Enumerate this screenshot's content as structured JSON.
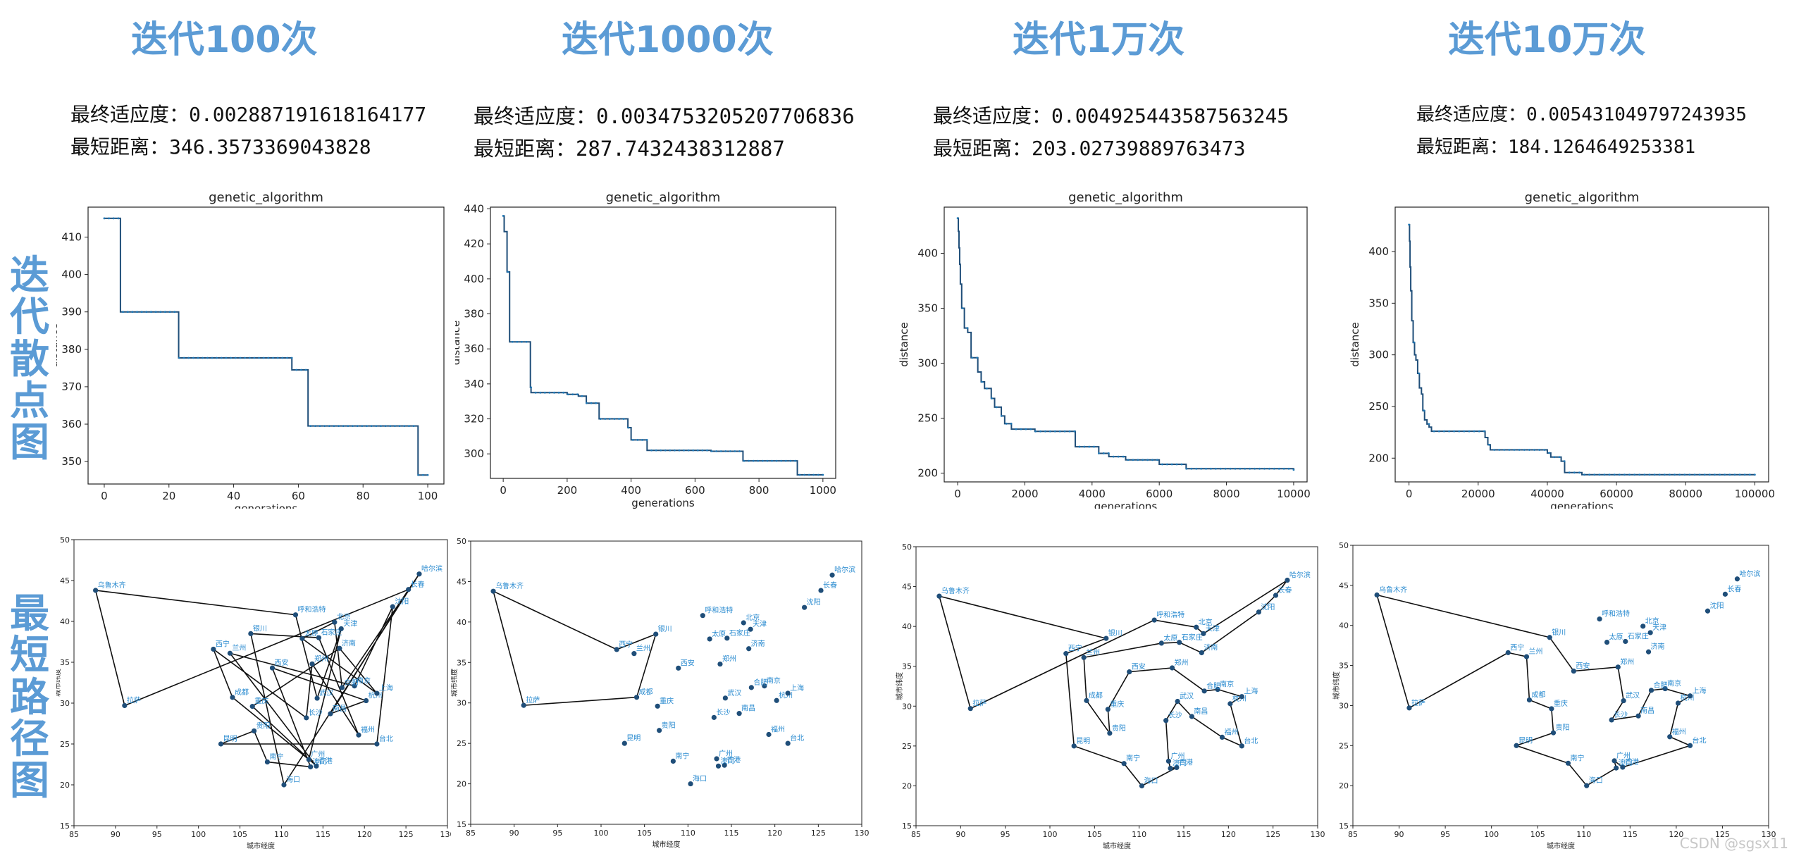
{
  "columns": [
    {
      "title": "迭代100次",
      "fitness_label": "最终适应度：",
      "fitness": "0.002887191618164177",
      "distance_label": "最短距离：",
      "distance": "346.3573369043828"
    },
    {
      "title": "迭代1000次",
      "fitness_label": "最终适应度：",
      "fitness": "0.0034753205207706836",
      "distance_label": "最短距离：",
      "distance": "287.7432438312887"
    },
    {
      "title": "迭代1万次",
      "fitness_label": "最终适应度：",
      "fitness": "0.004925443587563245",
      "distance_label": "最短距离：",
      "distance": "203.02739889763473"
    },
    {
      "title": "迭代10万次",
      "fitness_label": "最终适应度：",
      "fitness": "0.005431049797243935",
      "distance_label": "最短距离：",
      "distance": "184.1264649253381"
    }
  ],
  "row_labels": {
    "scatter": "迭代散点图",
    "route": "最短路径图"
  },
  "watermark": "CSDN @sgsx11",
  "chart_data": [
    {
      "type": "scatter",
      "title": "genetic_algorithm",
      "xlabel": "generations",
      "ylabel": "distance",
      "xlim": [
        -5,
        105
      ],
      "ylim": [
        344,
        418
      ],
      "xticks": [
        0,
        20,
        40,
        60,
        80,
        100
      ],
      "yticks": [
        350,
        360,
        370,
        380,
        390,
        400,
        410
      ],
      "steps": [
        [
          0,
          415
        ],
        [
          5,
          390
        ],
        [
          23,
          377.7
        ],
        [
          58,
          374.5
        ],
        [
          63,
          359.5
        ],
        [
          97,
          346.4
        ],
        [
          100,
          346.4
        ]
      ]
    },
    {
      "type": "scatter",
      "title": "genetic_algorithm",
      "xlabel": "generations",
      "ylabel": "distance",
      "xlim": [
        -40,
        1040
      ],
      "ylim": [
        286,
        441
      ],
      "xticks": [
        0,
        200,
        400,
        600,
        800,
        1000
      ],
      "yticks": [
        300,
        320,
        340,
        360,
        380,
        400,
        420,
        440
      ],
      "steps": [
        [
          0,
          436
        ],
        [
          3,
          427
        ],
        [
          12,
          404
        ],
        [
          20,
          364
        ],
        [
          85,
          338
        ],
        [
          87,
          335
        ],
        [
          200,
          334
        ],
        [
          235,
          333
        ],
        [
          260,
          329
        ],
        [
          300,
          320
        ],
        [
          390,
          315
        ],
        [
          400,
          308
        ],
        [
          450,
          302
        ],
        [
          640,
          302
        ],
        [
          650,
          301.5
        ],
        [
          750,
          296
        ],
        [
          920,
          288
        ],
        [
          1000,
          288
        ]
      ]
    },
    {
      "type": "scatter",
      "title": "genetic_algorithm",
      "xlabel": "generations",
      "ylabel": "distance",
      "xlim": [
        -400,
        10400
      ],
      "ylim": [
        192,
        442
      ],
      "xticks": [
        0,
        2000,
        4000,
        6000,
        8000,
        10000
      ],
      "yticks": [
        200,
        250,
        300,
        350,
        400
      ],
      "steps": [
        [
          0,
          432
        ],
        [
          20,
          420
        ],
        [
          40,
          405
        ],
        [
          60,
          390
        ],
        [
          80,
          372
        ],
        [
          120,
          350
        ],
        [
          200,
          332
        ],
        [
          300,
          328
        ],
        [
          400,
          305
        ],
        [
          600,
          292
        ],
        [
          700,
          283
        ],
        [
          800,
          277
        ],
        [
          1000,
          268
        ],
        [
          1100,
          260
        ],
        [
          1300,
          252
        ],
        [
          1400,
          245
        ],
        [
          1600,
          240
        ],
        [
          2300,
          238
        ],
        [
          3500,
          224
        ],
        [
          4200,
          218
        ],
        [
          4500,
          215
        ],
        [
          5000,
          212
        ],
        [
          6000,
          208
        ],
        [
          6800,
          204
        ],
        [
          10000,
          203
        ]
      ]
    },
    {
      "type": "scatter",
      "title": "genetic_algorithm",
      "xlabel": "generations",
      "ylabel": "distance",
      "xlim": [
        -4000,
        104000
      ],
      "ylim": [
        177,
        443
      ],
      "xticks": [
        0,
        20000,
        40000,
        60000,
        80000,
        100000
      ],
      "yticks": [
        200,
        250,
        300,
        350,
        400
      ],
      "steps": [
        [
          0,
          426
        ],
        [
          150,
          410
        ],
        [
          300,
          385
        ],
        [
          500,
          362
        ],
        [
          800,
          333
        ],
        [
          1200,
          312
        ],
        [
          1600,
          300
        ],
        [
          2000,
          295
        ],
        [
          2500,
          282
        ],
        [
          3000,
          268
        ],
        [
          3600,
          262
        ],
        [
          4000,
          246
        ],
        [
          4500,
          237
        ],
        [
          5200,
          233
        ],
        [
          5800,
          230
        ],
        [
          6500,
          226
        ],
        [
          21000,
          226
        ],
        [
          22000,
          220
        ],
        [
          22800,
          213
        ],
        [
          23500,
          208
        ],
        [
          40000,
          205
        ],
        [
          41000,
          201
        ],
        [
          44000,
          197
        ],
        [
          45000,
          186
        ],
        [
          50000,
          184
        ],
        [
          100000,
          184
        ]
      ]
    }
  ],
  "routes": {
    "xlabel": "城市经度",
    "ylabel": "城市纬度",
    "xlim": [
      85,
      130
    ],
    "ylim": [
      15,
      50
    ],
    "xticks": [
      85,
      90,
      95,
      100,
      105,
      110,
      115,
      120,
      125,
      130
    ],
    "yticks": [
      15,
      20,
      25,
      30,
      35,
      40,
      45,
      50
    ],
    "cities": [
      {
        "name": "乌鲁木齐",
        "lon": 87.6,
        "lat": 43.8
      },
      {
        "name": "拉萨",
        "lon": 91.1,
        "lat": 29.7
      },
      {
        "name": "西宁",
        "lon": 101.8,
        "lat": 36.6
      },
      {
        "name": "兰州",
        "lon": 103.8,
        "lat": 36.1
      },
      {
        "name": "银川",
        "lon": 106.3,
        "lat": 38.5
      },
      {
        "name": "成都",
        "lon": 104.1,
        "lat": 30.7
      },
      {
        "name": "重庆",
        "lon": 106.5,
        "lat": 29.6
      },
      {
        "name": "贵阳",
        "lon": 106.7,
        "lat": 26.6
      },
      {
        "name": "昆明",
        "lon": 102.7,
        "lat": 25.0
      },
      {
        "name": "南宁",
        "lon": 108.3,
        "lat": 22.8
      },
      {
        "name": "海口",
        "lon": 110.3,
        "lat": 20.0
      },
      {
        "name": "广州",
        "lon": 113.3,
        "lat": 23.1
      },
      {
        "name": "香港",
        "lon": 114.2,
        "lat": 22.3
      },
      {
        "name": "澳门",
        "lon": 113.5,
        "lat": 22.2
      },
      {
        "name": "长沙",
        "lon": 113.0,
        "lat": 28.2
      },
      {
        "name": "南昌",
        "lon": 115.9,
        "lat": 28.7
      },
      {
        "name": "福州",
        "lon": 119.3,
        "lat": 26.1
      },
      {
        "name": "台北",
        "lon": 121.5,
        "lat": 25.0
      },
      {
        "name": "杭州",
        "lon": 120.2,
        "lat": 30.3
      },
      {
        "name": "上海",
        "lon": 121.5,
        "lat": 31.2
      },
      {
        "name": "南京",
        "lon": 118.8,
        "lat": 32.1
      },
      {
        "name": "合肥",
        "lon": 117.3,
        "lat": 31.9
      },
      {
        "name": "武汉",
        "lon": 114.3,
        "lat": 30.6
      },
      {
        "name": "郑州",
        "lon": 113.7,
        "lat": 34.8
      },
      {
        "name": "西安",
        "lon": 108.9,
        "lat": 34.3
      },
      {
        "name": "太原",
        "lon": 112.5,
        "lat": 37.9
      },
      {
        "name": "石家庄",
        "lon": 114.5,
        "lat": 38.0
      },
      {
        "name": "北京",
        "lon": 116.4,
        "lat": 39.9
      },
      {
        "name": "天津",
        "lon": 117.2,
        "lat": 39.1
      },
      {
        "name": "济南",
        "lon": 117.0,
        "lat": 36.7
      },
      {
        "name": "呼和浩特",
        "lon": 111.7,
        "lat": 40.8
      },
      {
        "name": "沈阳",
        "lon": 123.4,
        "lat": 41.8
      },
      {
        "name": "长春",
        "lon": 125.3,
        "lat": 43.9
      },
      {
        "name": "哈尔滨",
        "lon": 126.6,
        "lat": 45.8
      }
    ],
    "tours": [
      [
        0,
        30,
        22,
        28,
        11,
        5,
        2,
        14,
        23,
        16,
        26,
        4,
        10,
        33,
        21,
        27,
        25,
        19,
        29,
        6,
        12,
        3,
        20,
        31,
        17,
        8,
        7,
        9,
        13,
        24,
        18,
        15,
        32,
        1
      ],
      [
        0,
        2,
        4,
        5,
        1
      ],
      [
        0,
        4,
        2,
        8,
        9,
        10,
        12,
        13,
        11,
        14,
        22,
        15,
        16,
        17,
        18,
        19,
        20,
        21,
        23,
        24,
        6,
        7,
        5,
        3,
        25,
        26,
        29,
        31,
        32,
        33,
        28,
        27,
        30,
        1
      ],
      [
        0,
        4,
        24,
        23,
        22,
        14,
        15,
        21,
        20,
        19,
        18,
        16,
        17,
        12,
        11,
        13,
        10,
        9,
        8,
        7,
        6,
        5,
        3,
        2,
        1
      ]
    ]
  }
}
